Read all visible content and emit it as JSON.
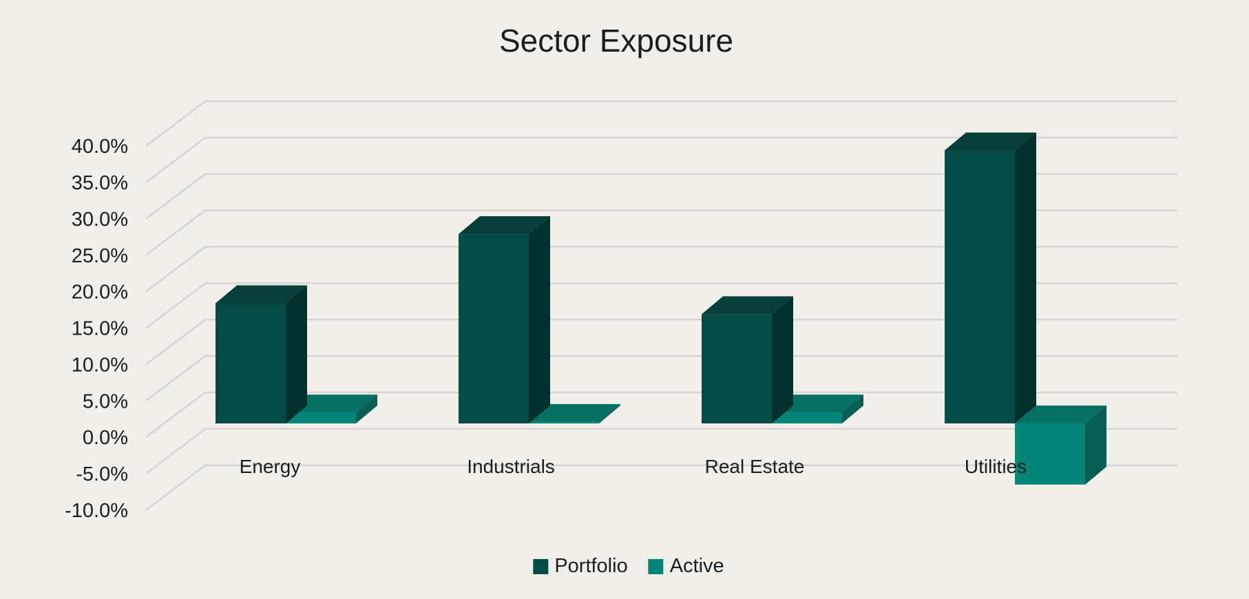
{
  "title": "Sector Exposure",
  "chart_data": {
    "type": "bar",
    "style": "3d-clustered-column",
    "title": "Sector Exposure",
    "categories": [
      "Energy",
      "Industrials",
      "Real Estate",
      "Utilities"
    ],
    "series": [
      {
        "name": "Portfolio",
        "values": [
          16.5,
          26.0,
          15.0,
          37.5
        ],
        "color_front": "#054C46",
        "color_top": "#073E39",
        "color_side": "#02302C"
      },
      {
        "name": "Active",
        "values": [
          1.5,
          0.2,
          1.5,
          -8.4
        ],
        "color_front": "#048578",
        "color_top": "#057063",
        "color_side": "#095E55"
      }
    ],
    "value_unit": "percent",
    "ylim": [
      -10,
      40
    ],
    "ytick_step": 5,
    "ytick_labels": [
      "40.0%",
      "35.0%",
      "30.0%",
      "25.0%",
      "20.0%",
      "15.0%",
      "10.0%",
      "5.0%",
      "0.0%",
      "-5.0%",
      "-10.0%"
    ],
    "grid": true,
    "legend_position": "bottom",
    "background_color": "#F0EFEA",
    "gridline_color": "#D6D4D1",
    "text_color": "#1D1D1B"
  }
}
